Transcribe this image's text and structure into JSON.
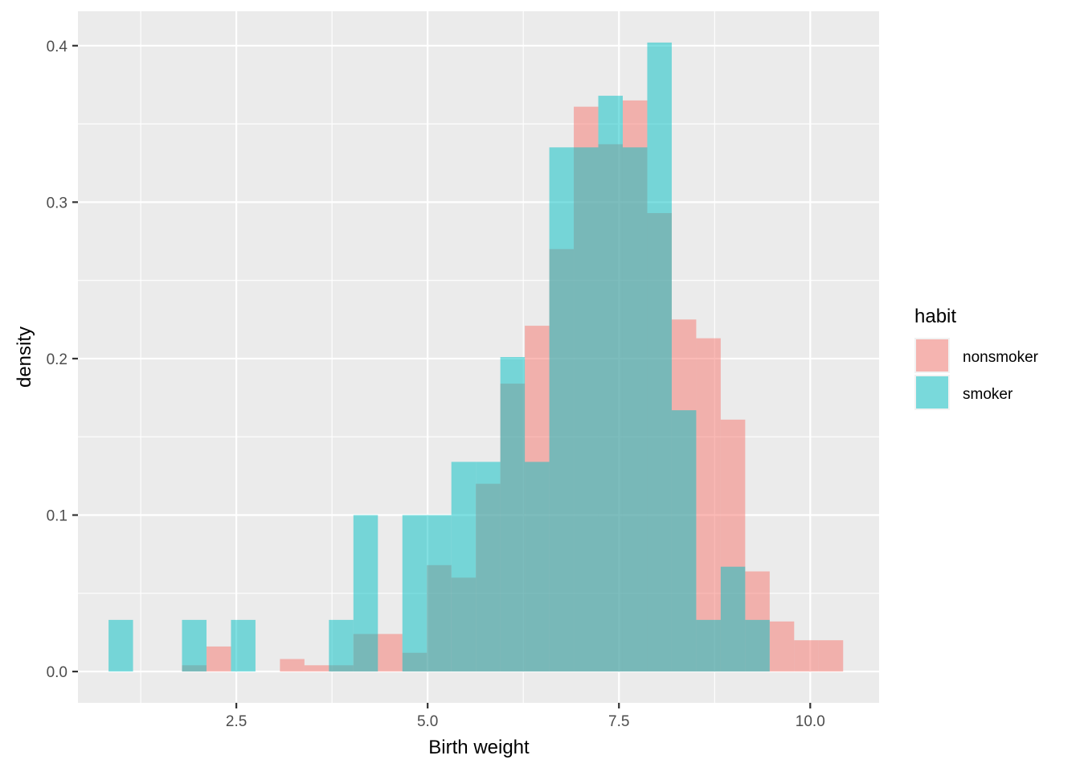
{
  "chart_data": {
    "type": "bar",
    "subtype": "histogram-overlay",
    "xlabel": "Birth weight",
    "ylabel": "density",
    "xlim": [
      0.43,
      10.9
    ],
    "ylim": [
      -0.02,
      0.422
    ],
    "x_ticks": [
      2.5,
      5.0,
      7.5,
      10.0
    ],
    "x_tick_labels": [
      "2.5",
      "5.0",
      "7.5",
      "10.0"
    ],
    "y_ticks": [
      0.0,
      0.1,
      0.2,
      0.3,
      0.4
    ],
    "y_tick_labels": [
      "0.0",
      "0.1",
      "0.2",
      "0.3",
      "0.4"
    ],
    "grid": true,
    "legend": {
      "title": "habit",
      "placement": "right"
    },
    "bin_width": 0.32,
    "series": [
      {
        "name": "nonsmoker",
        "color": "#F8766D",
        "bin_left_edges": [
          1.79,
          2.11,
          3.07,
          3.39,
          3.71,
          4.03,
          4.35,
          4.67,
          4.99,
          5.31,
          5.63,
          5.95,
          6.27,
          6.59,
          6.91,
          7.23,
          7.55,
          7.87,
          8.19,
          8.51,
          8.83,
          9.15,
          9.47,
          9.79,
          10.11
        ],
        "values": [
          0.004,
          0.016,
          0.008,
          0.004,
          0.004,
          0.024,
          0.024,
          0.012,
          0.068,
          0.06,
          0.12,
          0.184,
          0.221,
          0.27,
          0.361,
          0.337,
          0.365,
          0.293,
          0.225,
          0.213,
          0.161,
          0.064,
          0.032,
          0.02,
          0.02
        ]
      },
      {
        "name": "smoker",
        "color": "#00BFC4",
        "bin_left_edges": [
          0.83,
          1.79,
          2.43,
          3.71,
          4.03,
          4.67,
          4.99,
          5.31,
          5.63,
          5.95,
          6.27,
          6.59,
          6.91,
          7.23,
          7.55,
          7.87,
          8.19,
          8.51,
          8.83,
          9.15
        ],
        "values": [
          0.033,
          0.033,
          0.033,
          0.033,
          0.1,
          0.1,
          0.1,
          0.134,
          0.134,
          0.201,
          0.134,
          0.335,
          0.335,
          0.368,
          0.335,
          0.402,
          0.167,
          0.033,
          0.067,
          0.033
        ]
      }
    ]
  }
}
